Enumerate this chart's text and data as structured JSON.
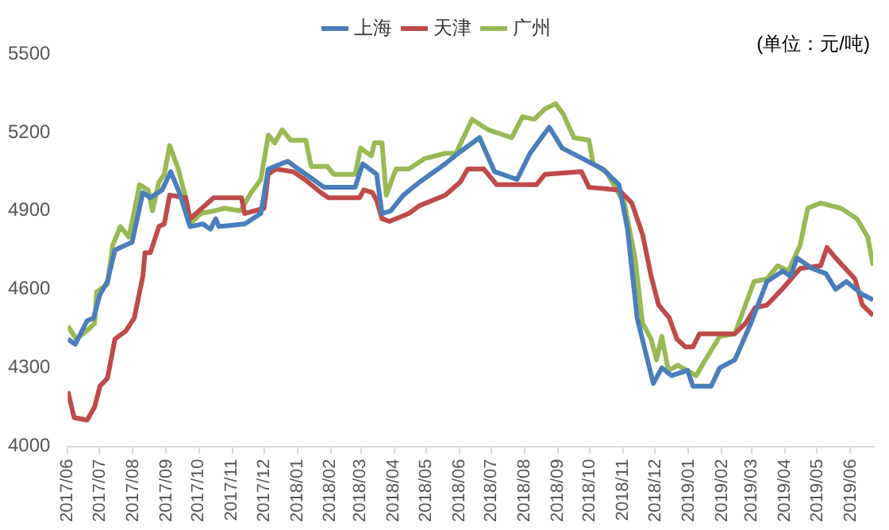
{
  "chart_data": {
    "type": "line",
    "legend": "top",
    "grid": false,
    "marker": "none",
    "line_style": "solid",
    "annotations": [
      "(单位：元/吨)"
    ],
    "xlim": [
      "2017-06-01",
      "2019-06-22"
    ],
    "xticks": [
      {
        "value": "2017-06-01",
        "label": "2017/06"
      },
      {
        "value": "2017-07-01",
        "label": "2017/07"
      },
      {
        "value": "2017-08-01",
        "label": "2017/08"
      },
      {
        "value": "2017-09-01",
        "label": "2017/09"
      },
      {
        "value": "2017-10-01",
        "label": "2017/10"
      },
      {
        "value": "2017-11-01",
        "label": "2017/11"
      },
      {
        "value": "2017-12-01",
        "label": "2017/12"
      },
      {
        "value": "2018-01-01",
        "label": "2018/01"
      },
      {
        "value": "2018-02-01",
        "label": "2018/02"
      },
      {
        "value": "2018-03-01",
        "label": "2018/03"
      },
      {
        "value": "2018-04-01",
        "label": "2018/04"
      },
      {
        "value": "2018-05-01",
        "label": "2018/05"
      },
      {
        "value": "2018-06-01",
        "label": "2018/06"
      },
      {
        "value": "2018-07-01",
        "label": "2018/07"
      },
      {
        "value": "2018-08-01",
        "label": "2018/08"
      },
      {
        "value": "2018-09-01",
        "label": "2018/09"
      },
      {
        "value": "2018-10-01",
        "label": "2018/10"
      },
      {
        "value": "2018-11-01",
        "label": "2018/11"
      },
      {
        "value": "2018-12-01",
        "label": "2018/12"
      },
      {
        "value": "2019-01-01",
        "label": "2019/01"
      },
      {
        "value": "2019-02-01",
        "label": "2019/02"
      },
      {
        "value": "2019-03-01",
        "label": "2019/03"
      },
      {
        "value": "2019-04-01",
        "label": "2019/04"
      },
      {
        "value": "2019-05-01",
        "label": "2019/05"
      },
      {
        "value": "2019-06-01",
        "label": "2019/06"
      }
    ],
    "ylim": [
      4000,
      5500
    ],
    "yticks": [
      4000,
      4300,
      4600,
      4900,
      5200,
      5500
    ],
    "series": [
      {
        "name": "上海",
        "color": "#4a7ebb",
        "x": [
          "2017-06-01",
          "2017-06-08",
          "2017-06-19",
          "2017-06-25",
          "2017-07-01",
          "2017-07-08",
          "2017-07-15",
          "2017-07-20",
          "2017-07-31",
          "2017-08-10",
          "2017-08-17",
          "2017-08-28",
          "2017-09-05",
          "2017-09-13",
          "2017-09-23",
          "2017-10-05",
          "2017-10-12",
          "2017-10-17",
          "2017-10-20",
          "2017-11-13",
          "2017-11-28",
          "2017-12-05",
          "2017-12-23",
          "2018-01-02",
          "2018-01-16",
          "2018-01-26",
          "2018-02-24",
          "2018-03-03",
          "2018-03-16",
          "2018-03-21",
          "2018-03-29",
          "2018-04-10",
          "2018-04-25",
          "2018-05-19",
          "2018-05-31",
          "2018-06-20",
          "2018-07-04",
          "2018-07-25",
          "2018-08-06",
          "2018-08-24",
          "2018-09-05",
          "2018-09-24",
          "2018-10-13",
          "2018-10-28",
          "2018-11-05",
          "2018-11-14",
          "2018-11-29",
          "2018-12-07",
          "2018-12-16",
          "2018-12-31",
          "2019-01-05",
          "2019-01-22",
          "2019-01-30",
          "2019-02-13",
          "2019-02-28",
          "2019-03-15",
          "2019-03-30",
          "2019-04-06",
          "2019-04-12",
          "2019-04-26",
          "2019-05-09",
          "2019-05-18",
          "2019-05-28",
          "2019-06-12",
          "2019-06-22"
        ],
        "values": [
          4410,
          4390,
          4480,
          4490,
          4580,
          4630,
          4750,
          4760,
          4780,
          4970,
          4950,
          4980,
          5050,
          4970,
          4840,
          4850,
          4830,
          4870,
          4840,
          4850,
          4890,
          5060,
          5090,
          5060,
          5020,
          4990,
          4990,
          5080,
          5040,
          4890,
          4900,
          4960,
          5010,
          5080,
          5120,
          5180,
          5050,
          5020,
          5120,
          5220,
          5140,
          5100,
          5060,
          5000,
          4830,
          4490,
          4240,
          4300,
          4270,
          4290,
          4230,
          4230,
          4300,
          4330,
          4470,
          4630,
          4670,
          4650,
          4720,
          4680,
          4660,
          4600,
          4630,
          4580,
          4560
        ]
      },
      {
        "name": "天津",
        "color": "#be4b48",
        "x": [
          "2017-06-01",
          "2017-06-07",
          "2017-06-19",
          "2017-06-26",
          "2017-07-01",
          "2017-07-08",
          "2017-07-15",
          "2017-07-25",
          "2017-08-02",
          "2017-08-10",
          "2017-08-12",
          "2017-08-17",
          "2017-08-25",
          "2017-08-30",
          "2017-09-04",
          "2017-09-19",
          "2017-09-23",
          "2017-10-15",
          "2017-11-10",
          "2017-11-13",
          "2017-12-01",
          "2017-12-05",
          "2017-12-12",
          "2017-12-28",
          "2018-01-08",
          "2018-01-23",
          "2018-01-30",
          "2018-02-28",
          "2018-03-04",
          "2018-03-12",
          "2018-03-16",
          "2018-03-21",
          "2018-03-28",
          "2018-04-15",
          "2018-04-25",
          "2018-05-19",
          "2018-06-02",
          "2018-06-09",
          "2018-06-24",
          "2018-07-06",
          "2018-08-12",
          "2018-08-20",
          "2018-09-23",
          "2018-09-30",
          "2018-10-28",
          "2018-11-09",
          "2018-11-19",
          "2018-11-27",
          "2018-12-04",
          "2018-12-14",
          "2018-12-21",
          "2018-12-29",
          "2019-01-05",
          "2019-01-11",
          "2019-02-13",
          "2019-02-23",
          "2019-03-04",
          "2019-03-15",
          "2019-03-29",
          "2019-04-15",
          "2019-05-04",
          "2019-05-10",
          "2019-05-18",
          "2019-06-05",
          "2019-06-12",
          "2019-06-22"
        ],
        "values": [
          4210,
          4110,
          4100,
          4150,
          4230,
          4260,
          4410,
          4440,
          4490,
          4650,
          4740,
          4740,
          4840,
          4850,
          4960,
          4950,
          4870,
          4950,
          4950,
          4890,
          4910,
          5040,
          5060,
          5050,
          5020,
          4970,
          4950,
          4950,
          4980,
          4970,
          4940,
          4870,
          4860,
          4890,
          4920,
          4960,
          5010,
          5060,
          5060,
          5000,
          5000,
          5040,
          5050,
          4990,
          4980,
          4930,
          4810,
          4650,
          4540,
          4490,
          4410,
          4380,
          4380,
          4430,
          4430,
          4470,
          4530,
          4540,
          4600,
          4680,
          4690,
          4760,
          4720,
          4640,
          4540,
          4500
        ]
      },
      {
        "name": "广州",
        "color": "#98b954",
        "x": [
          "2017-06-01",
          "2017-06-09",
          "2017-06-21",
          "2017-06-26",
          "2017-06-28",
          "2017-07-08",
          "2017-07-13",
          "2017-07-20",
          "2017-07-28",
          "2017-08-07",
          "2017-08-15",
          "2017-08-19",
          "2017-08-25",
          "2017-08-30",
          "2017-09-04",
          "2017-09-12",
          "2017-09-19",
          "2017-09-23",
          "2017-10-03",
          "2017-10-15",
          "2017-10-25",
          "2017-11-09",
          "2017-11-19",
          "2017-11-28",
          "2017-12-05",
          "2017-12-11",
          "2017-12-18",
          "2017-12-26",
          "2018-01-09",
          "2018-01-14",
          "2018-01-29",
          "2018-02-04",
          "2018-02-24",
          "2018-03-01",
          "2018-03-11",
          "2018-03-14",
          "2018-03-21",
          "2018-03-25",
          "2018-04-03",
          "2018-04-15",
          "2018-04-30",
          "2018-05-19",
          "2018-05-29",
          "2018-06-13",
          "2018-06-28",
          "2018-07-20",
          "2018-07-30",
          "2018-08-10",
          "2018-08-20",
          "2018-08-30",
          "2018-09-06",
          "2018-09-16",
          "2018-09-30",
          "2018-10-04",
          "2018-10-16",
          "2018-11-02",
          "2018-11-12",
          "2018-11-19",
          "2018-11-27",
          "2018-12-02",
          "2018-12-07",
          "2018-12-13",
          "2018-12-22",
          "2019-01-08",
          "2019-01-15",
          "2019-01-30",
          "2019-02-13",
          "2019-03-03",
          "2019-03-15",
          "2019-03-25",
          "2019-04-04",
          "2019-04-15",
          "2019-04-22",
          "2019-05-04",
          "2019-05-23",
          "2019-06-07",
          "2019-06-17",
          "2019-06-22"
        ],
        "values": [
          4460,
          4410,
          4450,
          4470,
          4590,
          4620,
          4770,
          4840,
          4800,
          5000,
          4980,
          4900,
          5010,
          5040,
          5150,
          5060,
          4950,
          4850,
          4890,
          4900,
          4910,
          4900,
          4970,
          5020,
          5190,
          5160,
          5210,
          5170,
          5170,
          5070,
          5070,
          5040,
          5040,
          5140,
          5110,
          5160,
          5160,
          4960,
          5060,
          5060,
          5100,
          5120,
          5120,
          5250,
          5210,
          5180,
          5260,
          5250,
          5290,
          5310,
          5270,
          5180,
          5170,
          5080,
          5050,
          4930,
          4720,
          4470,
          4410,
          4330,
          4420,
          4290,
          4310,
          4270,
          4320,
          4420,
          4430,
          4630,
          4640,
          4690,
          4670,
          4770,
          4910,
          4930,
          4910,
          4870,
          4800,
          4690
        ]
      }
    ]
  }
}
